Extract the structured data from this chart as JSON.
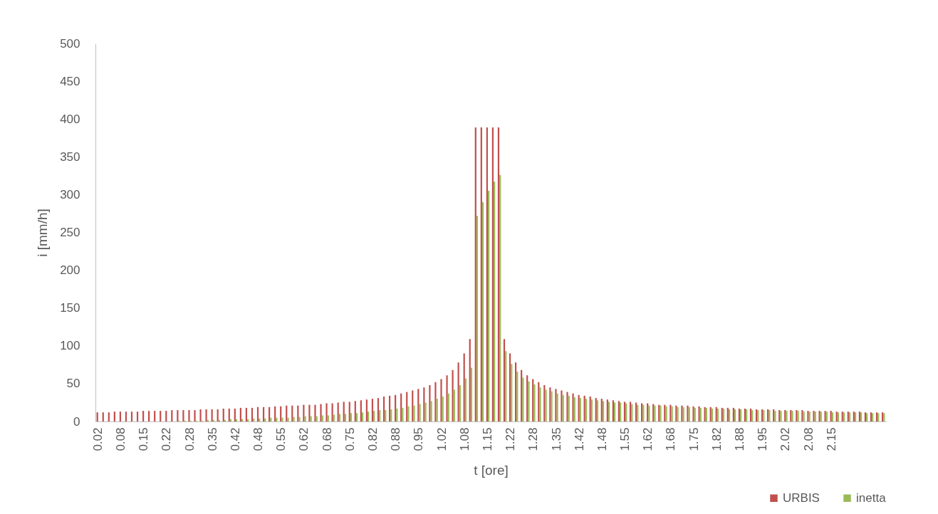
{
  "chart_data": {
    "type": "bar",
    "xlabel": "t [ore]",
    "ylabel": "i [mm/h]",
    "categories": [
      "0.02",
      null,
      null,
      null,
      "0.08",
      null,
      null,
      null,
      "0.15",
      null,
      null,
      null,
      "0.22",
      null,
      null,
      null,
      "0.28",
      null,
      null,
      null,
      "0.35",
      null,
      null,
      null,
      "0.42",
      null,
      null,
      null,
      "0.48",
      null,
      null,
      null,
      "0.55",
      null,
      null,
      null,
      "0.62",
      null,
      null,
      null,
      "0.68",
      null,
      null,
      null,
      "0.75",
      null,
      null,
      null,
      "0.82",
      null,
      null,
      null,
      "0.88",
      null,
      null,
      null,
      "0.95",
      null,
      null,
      null,
      "1.02",
      null,
      null,
      null,
      "1.08",
      null,
      null,
      null,
      "1.15",
      null,
      null,
      null,
      "1.22",
      null,
      null,
      null,
      "1.28",
      null,
      null,
      null,
      "1.35",
      null,
      null,
      null,
      "1.42",
      null,
      null,
      null,
      "1.48",
      null,
      null,
      null,
      "1.55",
      null,
      null,
      null,
      "1.62",
      null,
      null,
      null,
      "1.68",
      null,
      null,
      null,
      "1.75",
      null,
      null,
      null,
      "1.82",
      null,
      null,
      null,
      "1.88",
      null,
      null,
      null,
      "1.95",
      null,
      null,
      null,
      "2.02",
      null,
      null,
      null,
      "2.08",
      null,
      null,
      null,
      "2.15",
      null,
      null,
      null,
      null,
      null,
      null,
      null,
      null,
      null
    ],
    "series": [
      {
        "name": "URBIS",
        "color": "#c0504d",
        "values": [
          12,
          12,
          12,
          13,
          13,
          13,
          13,
          13,
          14,
          14,
          14,
          14,
          14,
          15,
          15,
          15,
          15,
          15,
          16,
          16,
          16,
          16,
          17,
          17,
          17,
          18,
          18,
          18,
          19,
          19,
          19,
          20,
          20,
          21,
          21,
          21,
          22,
          22,
          22,
          23,
          24,
          24,
          25,
          26,
          26,
          27,
          28,
          29,
          30,
          31,
          33,
          34,
          35,
          37,
          39,
          41,
          43,
          45,
          48,
          52,
          56,
          61,
          68,
          78,
          90,
          109,
          389,
          389,
          389,
          389,
          389,
          109,
          90,
          78,
          68,
          61,
          56,
          52,
          48,
          45,
          43,
          41,
          39,
          37,
          35,
          34,
          33,
          31,
          30,
          29,
          28,
          27,
          26,
          26,
          25,
          24,
          24,
          23,
          22,
          22,
          22,
          21,
          21,
          21,
          20,
          20,
          19,
          19,
          19,
          18,
          18,
          18,
          17,
          17,
          17,
          16,
          16,
          16,
          16,
          15,
          15,
          15,
          15,
          15,
          14,
          14,
          14,
          14,
          14,
          13,
          13,
          13,
          13,
          13,
          12,
          12,
          12,
          12
        ]
      },
      {
        "name": "inetta",
        "color": "#9bbb59",
        "values": [
          0,
          0,
          0,
          0,
          0,
          0,
          0,
          0,
          0,
          0,
          0,
          0,
          0,
          0,
          1,
          1,
          1,
          1,
          1,
          2,
          2,
          2,
          2,
          3,
          3,
          3,
          3,
          4,
          4,
          4,
          5,
          5,
          5,
          5,
          6,
          6,
          7,
          7,
          7,
          8,
          8,
          9,
          10,
          10,
          11,
          11,
          12,
          13,
          14,
          15,
          15,
          16,
          17,
          18,
          20,
          21,
          23,
          25,
          27,
          30,
          33,
          37,
          42,
          48,
          57,
          71,
          272,
          290,
          305,
          317,
          326,
          93,
          76,
          66,
          58,
          53,
          49,
          45,
          42,
          40,
          37,
          35,
          34,
          32,
          31,
          30,
          29,
          28,
          27,
          26,
          25,
          25,
          24,
          23,
          22,
          22,
          21,
          21,
          21,
          20,
          20,
          19,
          19,
          19,
          18,
          18,
          18,
          17,
          17,
          17,
          16,
          16,
          16,
          16,
          15,
          15,
          15,
          15,
          14,
          14,
          14,
          14,
          14,
          13,
          13,
          13,
          13,
          13,
          12,
          12,
          12,
          12,
          12,
          12,
          11,
          11,
          11,
          11
        ]
      }
    ],
    "ylim": [
      0,
      500
    ],
    "yticks": [
      0,
      50,
      100,
      150,
      200,
      250,
      300,
      350,
      400,
      450,
      500
    ],
    "legend": "bottom right"
  }
}
